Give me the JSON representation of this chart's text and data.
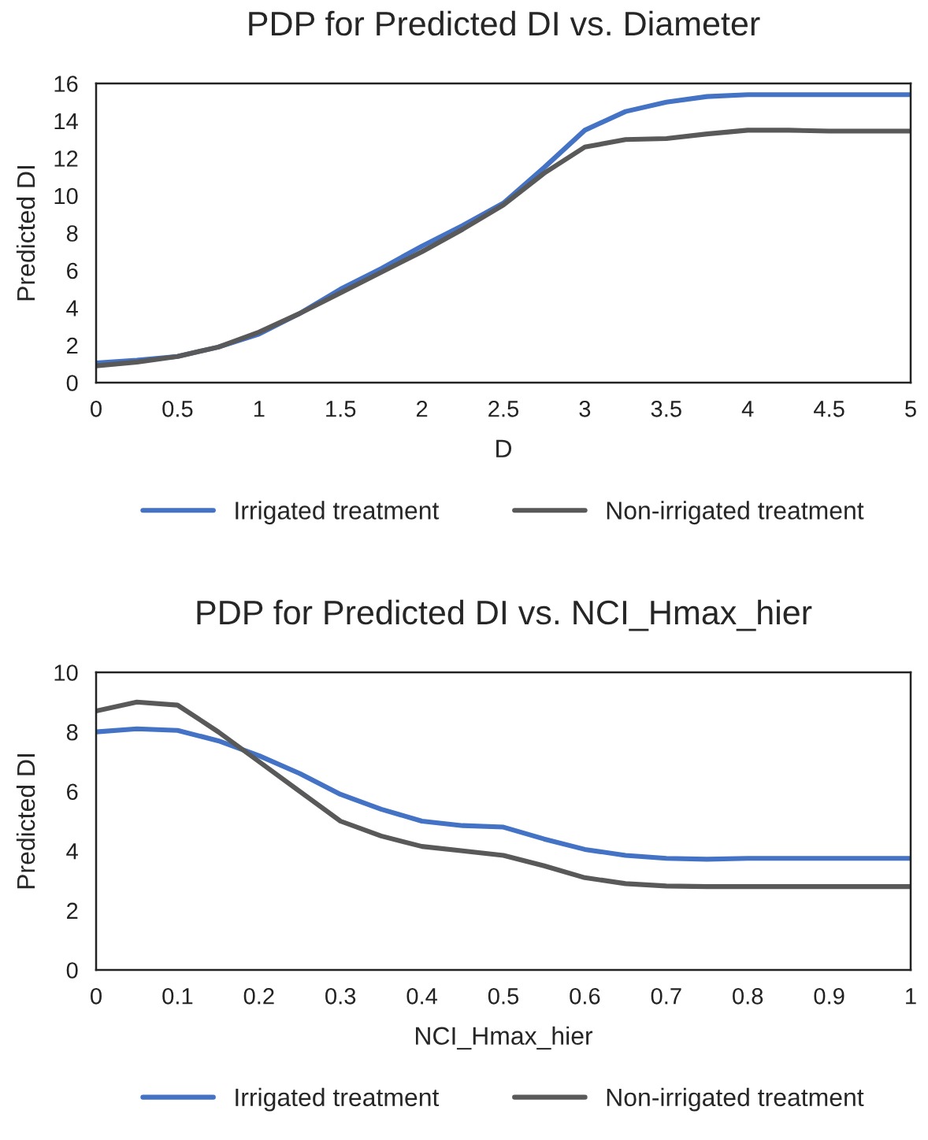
{
  "chart_data": [
    {
      "type": "line",
      "title": "PDP for Predicted DI vs. Diameter",
      "xlabel": "D",
      "ylabel": "Predicted DI",
      "x": [
        0,
        0.25,
        0.5,
        0.75,
        1,
        1.25,
        1.5,
        1.75,
        2,
        2.25,
        2.5,
        2.75,
        3,
        3.25,
        3.5,
        3.75,
        4,
        4.25,
        4.5,
        5
      ],
      "series": [
        {
          "name": "Irrigated treatment",
          "color": "#4472c4",
          "values": [
            1.05,
            1.2,
            1.4,
            1.9,
            2.6,
            3.7,
            5.0,
            6.1,
            7.3,
            8.4,
            9.6,
            11.5,
            13.5,
            14.5,
            15.0,
            15.3,
            15.4,
            15.4,
            15.4,
            15.4
          ]
        },
        {
          "name": "Non-irrigated treatment",
          "color": "#595959",
          "values": [
            0.9,
            1.1,
            1.4,
            1.9,
            2.7,
            3.7,
            4.8,
            5.9,
            7.0,
            8.2,
            9.5,
            11.2,
            12.6,
            13.0,
            13.05,
            13.3,
            13.5,
            13.5,
            13.45,
            13.45
          ]
        }
      ],
      "xlim": [
        0,
        5
      ],
      "xticks": [
        0,
        0.5,
        1,
        1.5,
        2,
        2.5,
        3,
        3.5,
        4,
        4.5,
        5
      ],
      "ylim": [
        0,
        16
      ],
      "yticks": [
        0,
        2,
        4,
        6,
        8,
        10,
        12,
        14,
        16
      ],
      "grid": false,
      "legend": "bottom",
      "marker": "none",
      "line_style": "solid"
    },
    {
      "type": "line",
      "title": "PDP for Predicted DI vs. NCI_Hmax_hier",
      "xlabel": "NCI_Hmax_hier",
      "ylabel": "Predicted DI",
      "x": [
        0,
        0.05,
        0.1,
        0.15,
        0.2,
        0.25,
        0.3,
        0.35,
        0.4,
        0.45,
        0.5,
        0.55,
        0.6,
        0.65,
        0.7,
        0.75,
        0.8,
        0.9,
        1
      ],
      "series": [
        {
          "name": "Irrigated treatment",
          "color": "#4472c4",
          "values": [
            8.0,
            8.1,
            8.05,
            7.7,
            7.2,
            6.6,
            5.9,
            5.4,
            5.0,
            4.85,
            4.8,
            4.4,
            4.05,
            3.85,
            3.75,
            3.72,
            3.75,
            3.75,
            3.75
          ]
        },
        {
          "name": "Non-irrigated treatment",
          "color": "#595959",
          "values": [
            8.7,
            9.0,
            8.9,
            8.0,
            7.0,
            6.0,
            5.0,
            4.5,
            4.15,
            4.0,
            3.85,
            3.5,
            3.1,
            2.9,
            2.82,
            2.8,
            2.8,
            2.8,
            2.8
          ]
        }
      ],
      "xlim": [
        0,
        1
      ],
      "xticks": [
        0,
        0.1,
        0.2,
        0.3,
        0.4,
        0.5,
        0.6,
        0.7,
        0.8,
        0.9,
        1
      ],
      "ylim": [
        0,
        10
      ],
      "yticks": [
        0,
        2,
        4,
        6,
        8,
        10
      ],
      "grid": false,
      "legend": "bottom",
      "marker": "none",
      "line_style": "solid"
    }
  ]
}
